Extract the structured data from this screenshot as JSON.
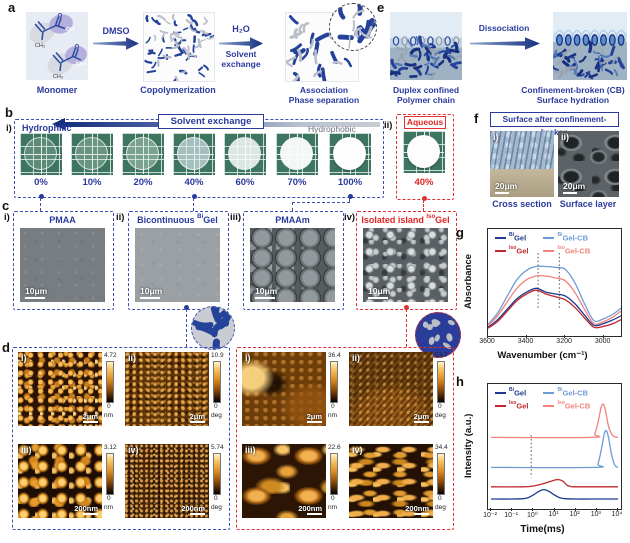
{
  "colors": {
    "navy_text": "#2b3a9d",
    "red_text": "#e02525",
    "dashed_blue": "#3a4fb0",
    "dashed_red": "#e03030",
    "bigel": "#1e3a8f",
    "isogel": "#c1272d",
    "bigel_cb": "#6d9bd6",
    "isogel_cb": "#f2837b"
  },
  "panel_a": {
    "label": "a",
    "monomer_caption": "Monomer",
    "chem": {
      "o1": "O",
      "oh": "OH",
      "ch3_1": "CH₃",
      "o2": "O",
      "nh2": "NH₂",
      "ch3_2": "CH₃"
    },
    "arrow1_label": "DMSO",
    "step2_caption": "Copolymerization",
    "arrow2_label": "H₂O",
    "arrow2_sub1": "Solvent",
    "arrow2_sub2": "exchange",
    "step3_cap1": "Association",
    "step3_cap2": "Phase separation"
  },
  "panel_e": {
    "label": "e",
    "arrow_label": "Dissociation",
    "left_cap1": "Duplex confined",
    "left_cap2": "Polymer chain",
    "right_cap1": "Confinement-broken (CB)",
    "right_cap2": "Surface hydration"
  },
  "panel_b": {
    "label": "b",
    "sub_i": "i)",
    "sub_ii": "ii)",
    "hydrophilic": "Hydrophilic",
    "hydrophobic": "Hydrophobic",
    "arrow_label": "Solvent exchange",
    "aqueous_label": "Aqueous",
    "samples": [
      {
        "pct": "0%"
      },
      {
        "pct": "10%"
      },
      {
        "pct": "20%"
      },
      {
        "pct": "40%"
      },
      {
        "pct": "60%"
      },
      {
        "pct": "70%"
      },
      {
        "pct": "100%"
      }
    ],
    "aqueous_pct": "40%"
  },
  "panel_f": {
    "label": "f",
    "title": "Surface after confinement-broken",
    "sub_i": "i)",
    "sub_ii": "ii)",
    "scale_i": "20μm",
    "scale_ii": "20μm",
    "cap_i": "Cross section",
    "cap_ii": "Surface layer"
  },
  "panel_c": {
    "label": "c",
    "items": [
      {
        "sub": "i)",
        "prefix": "PMAA",
        "sup": "",
        "base": "",
        "scale": "10μm"
      },
      {
        "sub": "ii)",
        "prefix": "Bicontinuous ",
        "sup": "Bi",
        "base": "Gel",
        "scale": "10μm"
      },
      {
        "sub": "iii)",
        "prefix": "PMAAm",
        "sup": "",
        "base": "",
        "scale": "10μm"
      },
      {
        "sub": "iv)",
        "prefix": "Isolated island ",
        "sup": "Iso",
        "base": "Gel",
        "scale": "10μm"
      }
    ]
  },
  "panel_d": {
    "label": "d",
    "groups": [
      {
        "accent": "blue",
        "tiles": [
          {
            "sub": "i)",
            "max": "4.72",
            "min": "0",
            "unit": "nm",
            "scale": "2μm"
          },
          {
            "sub": "ii)",
            "max": "10.9",
            "min": "0",
            "unit": "deg",
            "scale": "2μm"
          },
          {
            "sub": "iii)",
            "max": "3.12",
            "min": "0",
            "unit": "nm",
            "scale": "200nm"
          },
          {
            "sub": "iv)",
            "max": "5.74",
            "min": "0",
            "unit": "deg",
            "scale": "200nm"
          }
        ]
      },
      {
        "accent": "red",
        "tiles": [
          {
            "sub": "i)",
            "max": "36.4",
            "min": "0",
            "unit": "nm",
            "scale": "2μm"
          },
          {
            "sub": "ii)",
            "max": "53.7",
            "min": "0",
            "unit": "deg",
            "scale": "2μm"
          },
          {
            "sub": "iii)",
            "max": "22.6",
            "min": "0",
            "unit": "nm",
            "scale": "200nm"
          },
          {
            "sub": "iv)",
            "max": "34.4",
            "min": "0",
            "unit": "deg",
            "scale": "200nm"
          }
        ]
      }
    ]
  },
  "chart_data": [
    {
      "panel_label": "g",
      "type": "line",
      "xlabel": "Wavenumber (cm⁻¹)",
      "ylabel": "Absorbance",
      "x_ticks": [
        3600,
        3400,
        3200,
        3000
      ],
      "x_range_mapped": [
        3600,
        2910
      ],
      "x_reversed": true,
      "grid": false,
      "legend_position": "top-inside",
      "dashed_vlines_x": [
        3340,
        3230
      ],
      "x": [
        3600,
        3550,
        3500,
        3450,
        3400,
        3350,
        3300,
        3250,
        3200,
        3150,
        3100,
        3050,
        3000,
        2950,
        2910
      ],
      "series": [
        {
          "name_sup": "Bi",
          "name_base": "Gel",
          "color": "#1e3a8f",
          "values": [
            0.05,
            0.13,
            0.24,
            0.35,
            0.42,
            0.46,
            0.42,
            0.4,
            0.38,
            0.3,
            0.18,
            0.07,
            0.09,
            0.13,
            0.17
          ]
        },
        {
          "name_sup": "Iso",
          "name_base": "Gel",
          "color": "#c1272d",
          "values": [
            0.04,
            0.11,
            0.22,
            0.33,
            0.4,
            0.44,
            0.4,
            0.37,
            0.34,
            0.26,
            0.15,
            0.05,
            0.06,
            0.09,
            0.13
          ]
        },
        {
          "name_sup": "Bi",
          "name_base": "Gel-CB",
          "color": "#6d9bd6",
          "values": [
            0.08,
            0.2,
            0.38,
            0.55,
            0.65,
            0.69,
            0.69,
            0.68,
            0.66,
            0.52,
            0.3,
            0.12,
            0.14,
            0.19,
            0.25
          ]
        },
        {
          "name_sup": "Iso",
          "name_base": "Gel-CB",
          "color": "#f2837b",
          "values": [
            0.07,
            0.17,
            0.32,
            0.46,
            0.55,
            0.59,
            0.59,
            0.57,
            0.54,
            0.42,
            0.24,
            0.09,
            0.11,
            0.16,
            0.22
          ]
        }
      ],
      "y_unit": "absorbance (a.u., normalized 0-1)"
    },
    {
      "panel_label": "h",
      "type": "line",
      "xlabel": "Time(ms)",
      "ylabel": "Intensity (a.u.)",
      "x_scale": "log10",
      "x_tick_labels": [
        "10⁻²",
        "10⁻¹",
        "10⁰",
        "10¹",
        "10²",
        "10³",
        "10⁴"
      ],
      "x_tick_logs": [
        -2,
        -1,
        0,
        1,
        2,
        3,
        4
      ],
      "dashed_vline_log": -0.1,
      "grid": false,
      "legend_position": "top-inside",
      "series": [
        {
          "name_sup": "Bi",
          "name_base": "Gel",
          "color": "#1e3a8f",
          "points": [
            [
              -2,
              0.045
            ],
            [
              -1,
              0.045
            ],
            [
              -0.5,
              0.048
            ],
            [
              -0.25,
              0.057
            ],
            [
              0,
              0.081
            ],
            [
              0.25,
              0.113
            ],
            [
              0.5,
              0.13
            ],
            [
              0.75,
              0.113
            ],
            [
              1,
              0.081
            ],
            [
              1.25,
              0.057
            ],
            [
              1.5,
              0.048
            ],
            [
              2,
              0.045
            ],
            [
              3,
              0.045
            ],
            [
              4,
              0.045
            ]
          ]
        },
        {
          "name_sup": "Iso",
          "name_base": "Gel",
          "color": "#c1272d",
          "points": [
            [
              -2,
              0.155
            ],
            [
              -0.5,
              0.155
            ],
            [
              0,
              0.162
            ],
            [
              0.5,
              0.185
            ],
            [
              0.75,
              0.2
            ],
            [
              1,
              0.215
            ],
            [
              1.2,
              0.22
            ],
            [
              1.4,
              0.205
            ],
            [
              1.6,
              0.168
            ],
            [
              1.8,
              0.157
            ],
            [
              2,
              0.155
            ],
            [
              3,
              0.155
            ],
            [
              4,
              0.155
            ]
          ]
        },
        {
          "name_sup": "Bi",
          "name_base": "Gel-CB",
          "color": "#6d9bd6",
          "points": [
            [
              -2,
              0.33
            ],
            [
              2.9,
              0.33
            ],
            [
              3.05,
              0.36
            ],
            [
              3.2,
              0.48
            ],
            [
              3.35,
              0.63
            ],
            [
              3.45,
              0.66
            ],
            [
              3.55,
              0.6
            ],
            [
              3.7,
              0.44
            ],
            [
              3.85,
              0.35
            ],
            [
              4,
              0.33
            ]
          ]
        },
        {
          "name_sup": "Iso",
          "name_base": "Gel-CB",
          "color": "#f2837b",
          "points": [
            [
              -2,
              0.6
            ],
            [
              2.75,
              0.6
            ],
            [
              2.9,
              0.63
            ],
            [
              3.05,
              0.73
            ],
            [
              3.2,
              0.87
            ],
            [
              3.3,
              0.9
            ],
            [
              3.4,
              0.85
            ],
            [
              3.55,
              0.7
            ],
            [
              3.7,
              0.63
            ],
            [
              3.85,
              0.605
            ],
            [
              4,
              0.6
            ]
          ]
        }
      ],
      "y_unit": "intensity (a.u., curves vertically offset)"
    }
  ]
}
